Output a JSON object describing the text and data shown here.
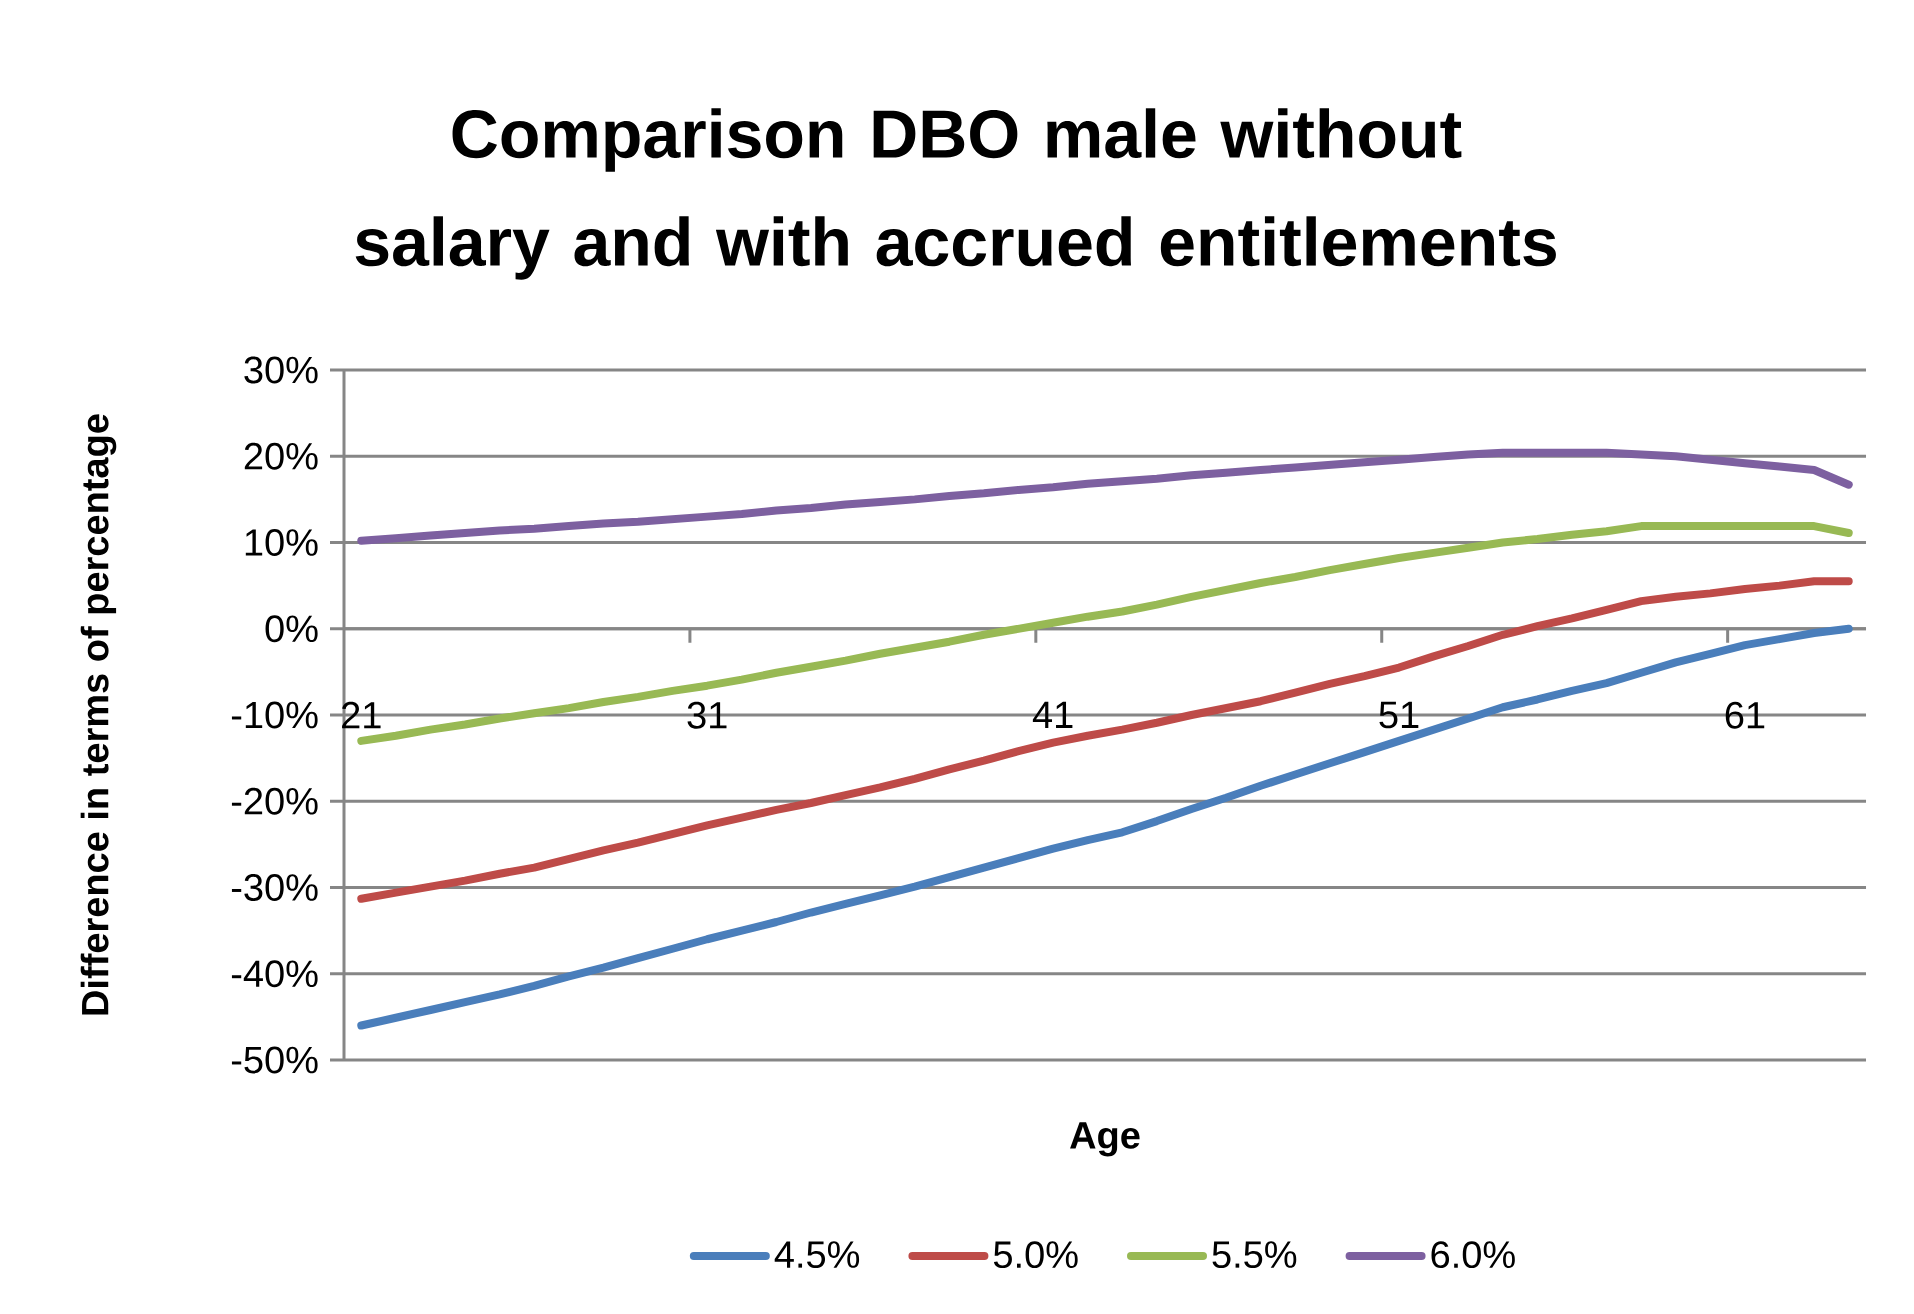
{
  "chart_data": {
    "type": "line",
    "title": "Comparison DBO male without salary and with accrued entitlements",
    "xlabel": "Age",
    "ylabel": "Difference in terms of percentage",
    "categories": [
      "21",
      null,
      null,
      null,
      null,
      null,
      null,
      null,
      null,
      null,
      "31",
      null,
      null,
      null,
      null,
      null,
      null,
      null,
      null,
      null,
      "41",
      null,
      null,
      null,
      null,
      null,
      null,
      null,
      null,
      null,
      "51",
      null,
      null,
      null,
      null,
      null,
      null,
      null,
      null,
      null,
      "61",
      null,
      null,
      null
    ],
    "series": [
      {
        "name": "4.5%",
        "color": "#4a7ebb",
        "values": [
          -46,
          -45.1,
          -44.2,
          -43.3,
          -42.4,
          -41.4,
          -40.3,
          -39.3,
          -38.2,
          -37.1,
          -36,
          -35,
          -34,
          -32.9,
          -31.9,
          -30.9,
          -29.9,
          -28.8,
          -27.7,
          -26.6,
          -25.5,
          -24.5,
          -23.6,
          -22.3,
          -20.9,
          -19.6,
          -18.2,
          -16.9,
          -15.6,
          -14.3,
          -13,
          -11.7,
          -10.4,
          -9.1,
          -8.2,
          -7.2,
          -6.3,
          -5.1,
          -3.9,
          -2.9,
          -1.9,
          -1.2,
          -0.5,
          0
        ]
      },
      {
        "name": "5.0%",
        "color": "#be4b48",
        "values": [
          -31.3,
          -30.6,
          -29.9,
          -29.2,
          -28.4,
          -27.7,
          -26.7,
          -25.7,
          -24.8,
          -23.8,
          -22.8,
          -21.9,
          -21,
          -20.2,
          -19.3,
          -18.4,
          -17.4,
          -16.3,
          -15.3,
          -14.2,
          -13.2,
          -12.4,
          -11.7,
          -10.9,
          -10,
          -9.2,
          -8.4,
          -7.4,
          -6.4,
          -5.5,
          -4.5,
          -3.2,
          -2,
          -0.7,
          0.3,
          1.2,
          2.2,
          3.2,
          3.7,
          4.1,
          4.6,
          5,
          5.5,
          5.5
        ]
      },
      {
        "name": "5.5%",
        "color": "#98b954",
        "values": [
          -13,
          -12.4,
          -11.7,
          -11.1,
          -10.4,
          -9.8,
          -9.2,
          -8.5,
          -7.9,
          -7.2,
          -6.6,
          -5.9,
          -5.1,
          -4.4,
          -3.7,
          -2.9,
          -2.2,
          -1.5,
          -0.7,
          0,
          0.7,
          1.4,
          2,
          2.8,
          3.7,
          4.5,
          5.3,
          6,
          6.8,
          7.5,
          8.2,
          8.8,
          9.4,
          10,
          10.4,
          10.9,
          11.3,
          11.9,
          11.9,
          11.9,
          11.9,
          11.9,
          11.9,
          11.1
        ]
      },
      {
        "name": "6.0%",
        "color": "#7d60a0",
        "values": [
          10.2,
          10.5,
          10.8,
          11.1,
          11.4,
          11.6,
          11.9,
          12.2,
          12.4,
          12.7,
          13,
          13.3,
          13.7,
          14,
          14.4,
          14.7,
          15,
          15.4,
          15.7,
          16.1,
          16.4,
          16.8,
          17.1,
          17.4,
          17.8,
          18.1,
          18.4,
          18.7,
          19,
          19.3,
          19.6,
          19.9,
          20.2,
          20.4,
          20.4,
          20.4,
          20.4,
          20.2,
          20,
          19.6,
          19.2,
          18.8,
          18.4,
          16.7
        ]
      }
    ],
    "ylim": [
      -50,
      30
    ],
    "yticks": [
      {
        "value": -50,
        "label": "-50%"
      },
      {
        "value": -40,
        "label": "-40%"
      },
      {
        "value": -30,
        "label": "-30%"
      },
      {
        "value": -20,
        "label": "-20%"
      },
      {
        "value": -10,
        "label": "-10%"
      },
      {
        "value": 0,
        "label": "0%"
      },
      {
        "value": 10,
        "label": "10%"
      },
      {
        "value": 20,
        "label": "20%"
      },
      {
        "value": 30,
        "label": "30%"
      }
    ],
    "grid": "y",
    "legend": "bottom"
  }
}
